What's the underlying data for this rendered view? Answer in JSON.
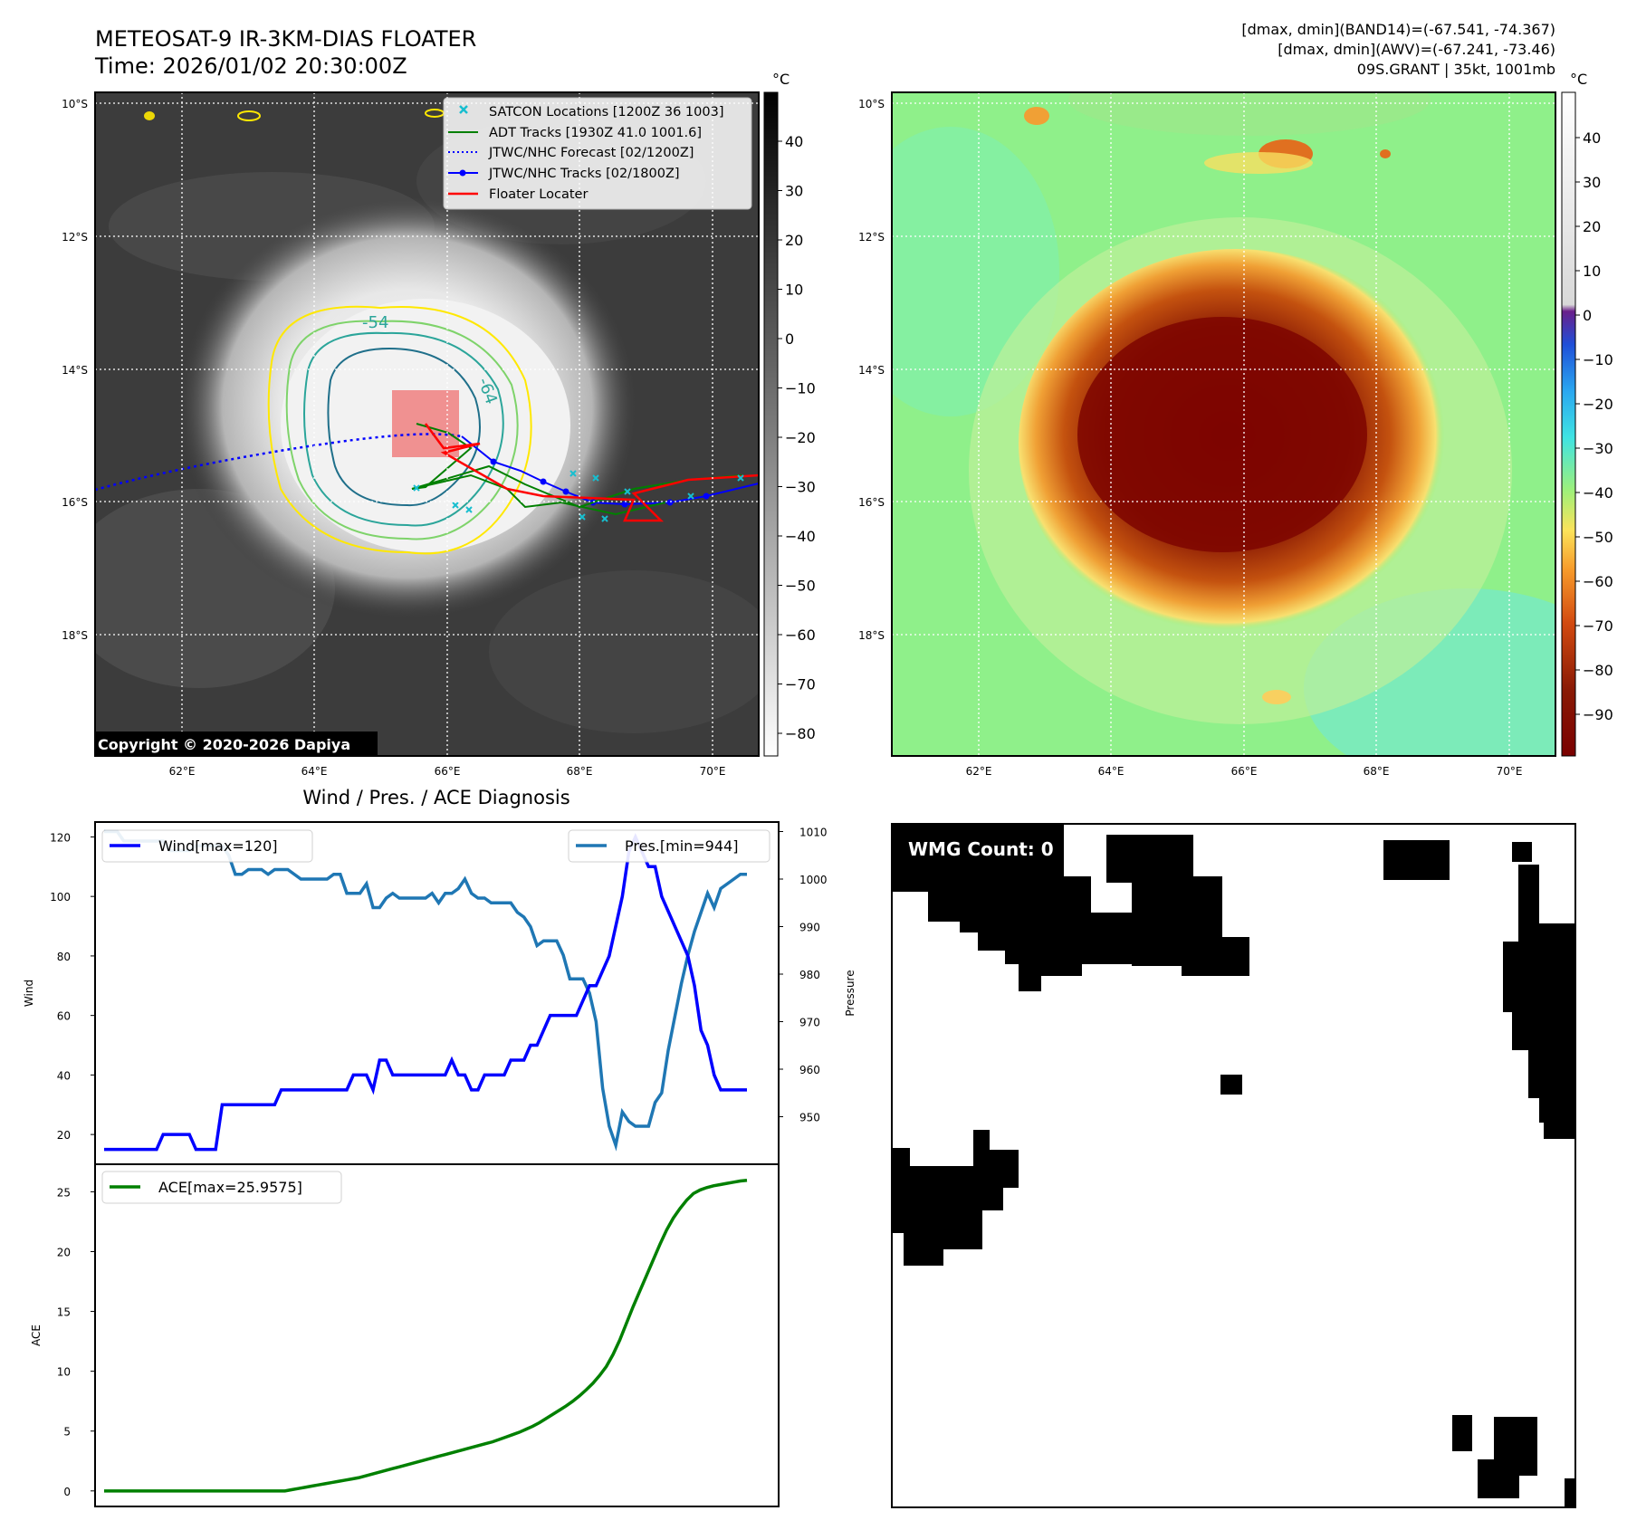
{
  "header": {
    "title": "METEOSAT-9 IR-3KM-DIAS FLOATER",
    "time": "Time: 2026/01/02 20:30:00Z",
    "stats_line1": "[dmax, dmin](BAND14)=(-67.541, -74.367)",
    "stats_line2": "[dmax, dmin](AWV)=(-67.241, -73.46)",
    "stats_line3": "09S.GRANT | 35kt, 1001mb"
  },
  "map": {
    "lat_labels": [
      "10°S",
      "12°S",
      "14°S",
      "16°S",
      "18°S"
    ],
    "lon_labels": [
      "62°E",
      "64°E",
      "66°E",
      "68°E",
      "70°E"
    ],
    "contour_labels": [
      "-54",
      "-64"
    ],
    "copyright": "Copyright © 2020-2026 Dapiya",
    "legend": [
      {
        "label": "SATCON Locations [1200Z 36 1003]",
        "color": "#17becf",
        "symbol": "x"
      },
      {
        "label": "ADT Tracks [1930Z 41.0 1001.6]",
        "color": "#008000",
        "symbol": "line"
      },
      {
        "label": "JTWC/NHC Forecast [02/1200Z]",
        "color": "#0000ff",
        "symbol": "dotted"
      },
      {
        "label": "JTWC/NHC Tracks [02/1800Z]",
        "color": "#0000ff",
        "symbol": "line-dot"
      },
      {
        "label": "Floater Locater",
        "color": "#ff0000",
        "symbol": "line"
      }
    ],
    "colorbar_gray": {
      "unit": "°C",
      "ticks": [
        "40",
        "30",
        "20",
        "10",
        "0",
        "−10",
        "−20",
        "−30",
        "−40",
        "−50",
        "−60",
        "−70",
        "−80"
      ]
    },
    "colorbar_color": {
      "unit": "°C",
      "ticks": [
        "40",
        "30",
        "20",
        "10",
        "0",
        "−10",
        "−20",
        "−30",
        "−40",
        "−50",
        "−60",
        "−70",
        "−80",
        "−90"
      ]
    }
  },
  "wmg": {
    "label": "WMG Count: 0"
  },
  "chart_data": [
    {
      "type": "line",
      "title": "Wind / Pres. / ACE Diagnosis",
      "ylabel": "Wind",
      "ylabel_right": "Pressure",
      "ylim": [
        10,
        125
      ],
      "ylim_right": [
        940,
        1012
      ],
      "yticks": [
        20,
        40,
        60,
        80,
        100,
        120
      ],
      "yticks_right": [
        950,
        960,
        970,
        980,
        990,
        1000,
        1010
      ],
      "series": [
        {
          "name": "Wind[max=120]",
          "color": "#0000ff",
          "axis": "left",
          "values": [
            15,
            15,
            15,
            15,
            15,
            15,
            15,
            15,
            15,
            20,
            20,
            20,
            20,
            20,
            15,
            15,
            15,
            15,
            30,
            30,
            30,
            30,
            30,
            30,
            30,
            30,
            30,
            35,
            35,
            35,
            35,
            35,
            35,
            35,
            35,
            35,
            35,
            35,
            40,
            40,
            40,
            35,
            45,
            45,
            40,
            40,
            40,
            40,
            40,
            40,
            40,
            40,
            40,
            45,
            40,
            40,
            35,
            35,
            40,
            40,
            40,
            40,
            45,
            45,
            45,
            50,
            50,
            55,
            60,
            60,
            60,
            60,
            60,
            65,
            70,
            70,
            75,
            80,
            90,
            100,
            115,
            120,
            115,
            110,
            110,
            100,
            95,
            90,
            85,
            80,
            70,
            55,
            50,
            40,
            35,
            35,
            35,
            35,
            35
          ]
        },
        {
          "name": "Pres.[min=944]",
          "color": "#1f77b4",
          "axis": "right",
          "values": [
            1010,
            1010,
            1010,
            1008,
            1008,
            1008,
            1008,
            1008,
            1008,
            1008,
            1006,
            1006,
            1006,
            1006,
            1007,
            1007,
            1007,
            1007,
            1007,
            1005,
            1001,
            1001,
            1002,
            1002,
            1002,
            1001,
            1002,
            1002,
            1002,
            1001,
            1000,
            1000,
            1000,
            1000,
            1000,
            1001,
            1001,
            997,
            997,
            997,
            999,
            994,
            994,
            996,
            997,
            996,
            996,
            996,
            996,
            996,
            997,
            995,
            997,
            997,
            998,
            1000,
            997,
            996,
            996,
            995,
            995,
            995,
            995,
            993,
            992,
            990,
            986,
            987,
            987,
            987,
            984,
            979,
            979,
            979,
            976,
            970,
            956,
            948,
            944,
            951,
            949,
            948,
            948,
            948,
            953,
            955,
            964,
            971,
            978,
            984,
            989,
            993,
            997,
            994,
            998,
            999,
            1000,
            1001,
            1001
          ]
        }
      ]
    },
    {
      "type": "line",
      "ylabel": "ACE",
      "ylim": [
        -1.3,
        27.3
      ],
      "yticks": [
        0,
        5,
        10,
        15,
        20,
        25
      ],
      "series": [
        {
          "name": "ACE[max=25.9575]",
          "color": "#008000",
          "values": [
            0,
            0,
            0,
            0,
            0,
            0,
            0,
            0,
            0,
            0,
            0,
            0,
            0,
            0,
            0,
            0,
            0,
            0,
            0,
            0,
            0,
            0,
            0,
            0,
            0,
            0,
            0,
            0,
            0.1,
            0.2,
            0.3,
            0.4,
            0.5,
            0.6,
            0.7,
            0.8,
            0.9,
            1.0,
            1.1,
            1.25,
            1.4,
            1.55,
            1.7,
            1.85,
            2.0,
            2.15,
            2.3,
            2.45,
            2.6,
            2.75,
            2.9,
            3.05,
            3.2,
            3.35,
            3.5,
            3.65,
            3.8,
            3.95,
            4.1,
            4.3,
            4.5,
            4.7,
            4.9,
            5.15,
            5.4,
            5.7,
            6.05,
            6.4,
            6.75,
            7.1,
            7.5,
            7.95,
            8.45,
            9.0,
            9.65,
            10.4,
            11.4,
            12.6,
            14.0,
            15.4,
            16.7,
            18.0,
            19.3,
            20.6,
            21.8,
            22.8,
            23.6,
            24.3,
            24.85,
            25.15,
            25.35,
            25.5,
            25.6,
            25.7,
            25.8,
            25.9,
            25.9575
          ]
        }
      ]
    }
  ]
}
